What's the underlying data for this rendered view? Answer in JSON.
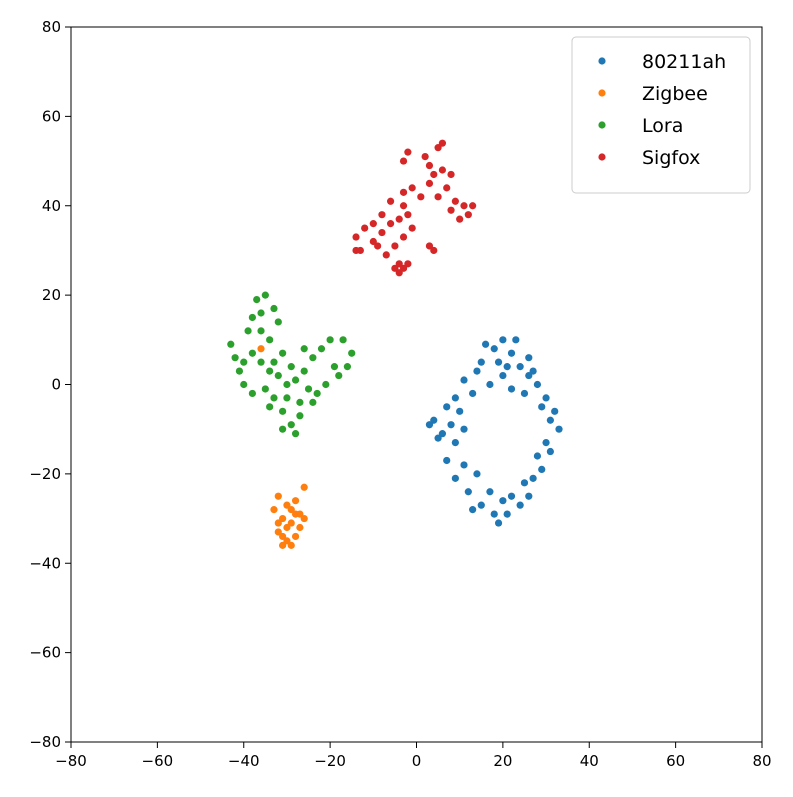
{
  "chart_data": {
    "type": "scatter",
    "xlim": [
      -80,
      80
    ],
    "ylim": [
      -80,
      80
    ],
    "xticks": [
      {
        "value": -80,
        "label": "−80"
      },
      {
        "value": -60,
        "label": "−60"
      },
      {
        "value": -40,
        "label": "−40"
      },
      {
        "value": -20,
        "label": "−20"
      },
      0,
      20,
      40,
      60,
      80
    ],
    "yticks": [
      {
        "value": -80,
        "label": "−80"
      },
      {
        "value": -60,
        "label": "−60"
      },
      {
        "value": -40,
        "label": "−40"
      },
      {
        "value": -20,
        "label": "−20"
      },
      0,
      20,
      40,
      60,
      80
    ],
    "legend": "upper right",
    "series": [
      {
        "name": "80211ah",
        "color": "#1f77b4",
        "x": [
          15,
          18,
          20,
          22,
          24,
          26,
          20,
          17,
          13,
          11,
          22,
          26,
          28,
          19,
          23,
          16,
          25,
          14,
          21,
          27,
          29,
          31,
          33,
          30,
          28,
          29,
          27,
          32,
          31,
          30,
          4,
          6,
          8,
          10,
          9,
          7,
          11,
          5,
          3,
          9,
          7,
          9,
          12,
          15,
          18,
          20,
          22,
          24,
          17,
          14,
          11,
          19,
          25,
          26,
          13,
          21
        ],
        "values": [
          5,
          8,
          10,
          7,
          4,
          2,
          2,
          0,
          -2,
          1,
          -1,
          6,
          0,
          5,
          10,
          9,
          -2,
          3,
          4,
          3,
          -5,
          -8,
          -10,
          -13,
          -16,
          -19,
          -21,
          -6,
          -15,
          -3,
          -8,
          -11,
          -9,
          -6,
          -13,
          -5,
          -10,
          -12,
          -9,
          -3,
          -17,
          -21,
          -24,
          -27,
          -29,
          -26,
          -25,
          -27,
          -24,
          -20,
          -18,
          -31,
          -22,
          -25,
          -28,
          -29
        ]
      },
      {
        "name": "Zigbee",
        "color": "#ff7f0e",
        "x": [
          -32,
          -30,
          -28,
          -26,
          -31,
          -29,
          -27,
          -32,
          -30,
          -28,
          -31,
          -29,
          -27,
          -33,
          -30,
          -28,
          -26,
          -32,
          -29,
          -31,
          -36
        ],
        "values": [
          -25,
          -27,
          -26,
          -23,
          -30,
          -31,
          -29,
          -33,
          -35,
          -34,
          -36,
          -36,
          -32,
          -28,
          -32,
          -29,
          -30,
          -31,
          -28,
          -34,
          8
        ]
      },
      {
        "name": "Lora",
        "color": "#2ca02c",
        "x": [
          -43,
          -42,
          -40,
          -38,
          -36,
          -34,
          -32,
          -30,
          -28,
          -26,
          -25,
          -24,
          -22,
          -20,
          -17,
          -15,
          -16,
          -18,
          -21,
          -23,
          -33,
          -35,
          -38,
          -40,
          -31,
          -29,
          -31,
          -28,
          -27,
          -30,
          -36,
          -38,
          -37,
          -35,
          -33,
          -32,
          -34,
          -36,
          -39,
          -27,
          -29,
          -31,
          -33,
          -26,
          -41,
          -34,
          -24,
          -19
        ],
        "values": [
          9,
          6,
          5,
          7,
          5,
          3,
          2,
          0,
          1,
          3,
          -1,
          6,
          8,
          10,
          10,
          7,
          4,
          2,
          0,
          -2,
          -3,
          -1,
          -2,
          0,
          -6,
          -9,
          -10,
          -11,
          -7,
          -3,
          12,
          15,
          19,
          20,
          17,
          14,
          10,
          16,
          12,
          -4,
          4,
          7,
          5,
          8,
          3,
          -5,
          -4,
          4
        ]
      },
      {
        "name": "Sigfox",
        "color": "#d62728",
        "x": [
          -14,
          -13,
          -12,
          -10,
          -8,
          -9,
          -7,
          -5,
          -4,
          -2,
          -1,
          -3,
          -6,
          -4,
          -3,
          -5,
          -2,
          -4,
          -10,
          -8,
          -3,
          -1,
          1,
          3,
          4,
          6,
          7,
          8,
          9,
          10,
          12,
          11,
          13,
          3,
          2,
          5,
          6,
          -3,
          -2,
          5,
          8,
          3,
          4,
          -14,
          -6,
          -3
        ],
        "values": [
          33,
          30,
          35,
          36,
          34,
          31,
          29,
          31,
          37,
          38,
          35,
          33,
          36,
          27,
          26,
          26,
          27,
          25,
          32,
          38,
          43,
          44,
          42,
          45,
          47,
          48,
          44,
          39,
          41,
          37,
          38,
          40,
          40,
          49,
          51,
          53,
          54,
          50,
          52,
          42,
          47,
          31,
          30,
          30,
          41,
          40
        ]
      }
    ]
  }
}
